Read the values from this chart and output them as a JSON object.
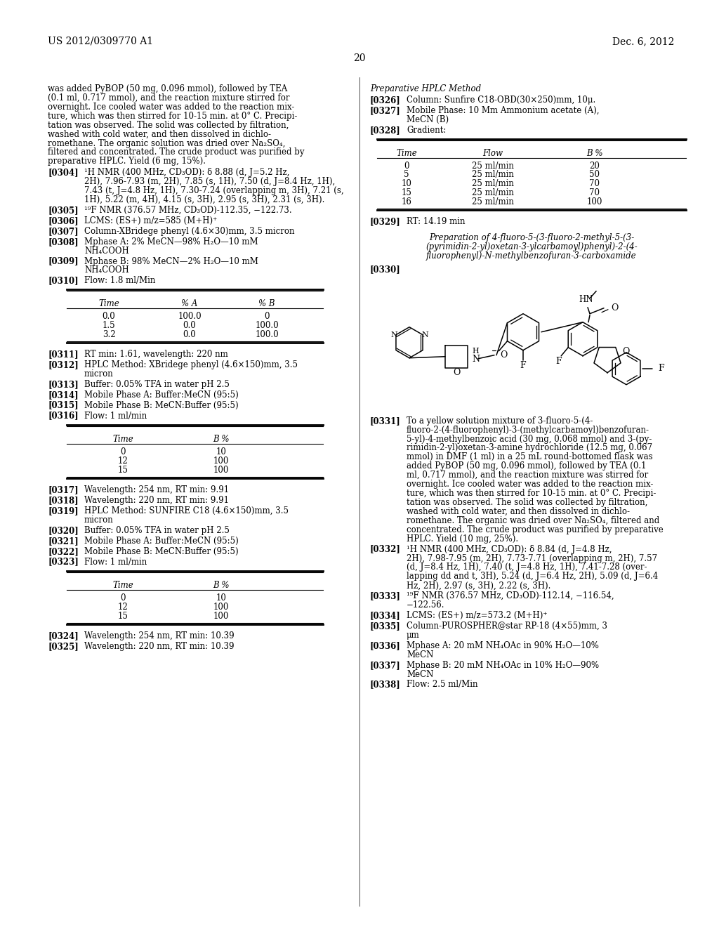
{
  "background_color": "#ffffff",
  "header_left": "US 2012/0309770 A1",
  "header_right": "Dec. 6, 2012",
  "page_number": "20",
  "left_column": {
    "intro_text": "was added PyBOP (50 mg, 0.096 mmol), followed by TEA\n(0.1 ml, 0.717 mmol), and the reaction mixture stirred for\novernight. Ice cooled water was added to the reaction mix-\nture, which was then stirred for 10-15 min. at 0° C. Precipi-\ntation was observed. The solid was collected by filtration,\nwashed with cold water, and then dissolved in dichlo-\nromethane. The organic solution was dried over Na₂SO₄,\nfiltered and concentrated. The crude product was purified by\npreparative HPLC. Yield (6 mg, 15%).",
    "entries": [
      {
        "tag": "[0304]",
        "text": "¹H NMR (400 MHz, CD₃OD): δ 8.88 (d, J=5.2 Hz,\n2H), 7.96-7.93 (m, 2H), 7.85 (s, 1H), 7.50 (d, J=8.4 Hz, 1H),\n7.43 (t, J=4.8 Hz, 1H), 7.30-7.24 (overlapping m, 3H), 7.21 (s,\n1H), 5.22 (m, 4H), 4.15 (s, 3H), 2.95 (s, 3H), 2.31 (s, 3H)."
      },
      {
        "tag": "[0305]",
        "text": "¹⁹F NMR (376.57 MHz, CD₃OD)-112.35, −122.73."
      },
      {
        "tag": "[0306]",
        "text": "LCMS: (ES+) m/z=585 (M+H)⁺"
      },
      {
        "tag": "[0307]",
        "text": "Column-XBridege phenyl (4.6×30)mm, 3.5 micron"
      },
      {
        "tag": "[0308]",
        "text": "Mphase A: 2% MeCN—98% H₂O—10 mM\nNH₄COOH"
      },
      {
        "tag": "[0309]",
        "text": "Mphase B: 98% MeCN—2% H₂O—10 mM\nNH₄COOH"
      },
      {
        "tag": "[0310]",
        "text": "Flow: 1.8 ml/Min"
      }
    ],
    "table1": {
      "headers": [
        "Time",
        "% A",
        "% B"
      ],
      "rows": [
        [
          "0.0",
          "100.0",
          "0"
        ],
        [
          "1.5",
          "0.0",
          "100.0"
        ],
        [
          "3.2",
          "0.0",
          "100.0"
        ]
      ]
    },
    "entries2": [
      {
        "tag": "[0311]",
        "text": "RT min: 1.61, wavelength: 220 nm"
      },
      {
        "tag": "[0312]",
        "text": "HPLC Method: XBridege phenyl (4.6×150)mm, 3.5\nmicron"
      },
      {
        "tag": "[0313]",
        "text": "Buffer: 0.05% TFA in water pH 2.5"
      },
      {
        "tag": "[0314]",
        "text": "Mobile Phase A: Buffer:MeCN (95:5)"
      },
      {
        "tag": "[0315]",
        "text": "Mobile Phase B: MeCN:Buffer (95:5)"
      },
      {
        "tag": "[0316]",
        "text": "Flow: 1 ml/min"
      }
    ],
    "table2": {
      "headers": [
        "Time",
        "B %"
      ],
      "rows": [
        [
          "0",
          "10"
        ],
        [
          "12",
          "100"
        ],
        [
          "15",
          "100"
        ]
      ]
    },
    "entries3": [
      {
        "tag": "[0317]",
        "text": "Wavelength: 254 nm, RT min: 9.91"
      },
      {
        "tag": "[0318]",
        "text": "Wavelength: 220 nm, RT min: 9.91"
      },
      {
        "tag": "[0319]",
        "text": "HPLC Method: SUNFIRE C18 (4.6×150)mm, 3.5\nmicron"
      },
      {
        "tag": "[0320]",
        "text": "Buffer: 0.05% TFA in water pH 2.5"
      },
      {
        "tag": "[0321]",
        "text": "Mobile Phase A: Buffer:MeCN (95:5)"
      },
      {
        "tag": "[0322]",
        "text": "Mobile Phase B: MeCN:Buffer (95:5)"
      },
      {
        "tag": "[0323]",
        "text": "Flow: 1 ml/min"
      }
    ],
    "table3": {
      "headers": [
        "Time",
        "B %"
      ],
      "rows": [
        [
          "0",
          "10"
        ],
        [
          "12",
          "100"
        ],
        [
          "15",
          "100"
        ]
      ]
    },
    "entries4": [
      {
        "tag": "[0324]",
        "text": "Wavelength: 254 nm, RT min: 10.39"
      },
      {
        "tag": "[0325]",
        "text": "Wavelength: 220 nm, RT min: 10.39"
      }
    ]
  },
  "right_column": {
    "section_title": "Preparative HPLC Method",
    "entries": [
      {
        "tag": "[0326]",
        "text": "Column: Sunfire C18-OBD(30×250)mm, 10μ."
      },
      {
        "tag": "[0327]",
        "text": "Mobile Phase: 10 Mm Ammonium acetate (A),\nMeCN (B)"
      },
      {
        "tag": "[0328]",
        "text": "Gradient:"
      }
    ],
    "table_prep": {
      "headers": [
        "Time",
        "Flow",
        "B %"
      ],
      "rows": [
        [
          "0",
          "25 ml/min",
          "20"
        ],
        [
          "5",
          "25 ml/min",
          "50"
        ],
        [
          "10",
          "25 ml/min",
          "70"
        ],
        [
          "15",
          "25 ml/min",
          "70"
        ],
        [
          "16",
          "25 ml/min",
          "100"
        ]
      ]
    },
    "entries2": [
      {
        "tag": "[0329]",
        "text": "RT: 14.19 min"
      }
    ],
    "compound_title_lines": [
      "Preparation of 4-fluoro-5-(3-fluoro-2-methyl-5-(3-",
      "(pyrimidin-2-yl)oxetan-3-ylcarbamoyl)phenyl)-2-(4-",
      "fluorophenyl)-N-methylbenzofuran-3-carboxamide"
    ],
    "tag0330": "[0330]",
    "entries3": [
      {
        "tag": "[0331]",
        "text": "To a yellow solution mixture of 3-fluoro-5-(4-\nfluoro-2-(4-fluorophenyl)-3-(methylcarbamoyl)benzofuran-\n5-yl)-4-methylbenzoic acid (30 mg, 0.068 mmol) and 3-(py-\nrimidin-2-yl)oxetan-3-amine hydrochloride (12.5 mg, 0.067\nmmol) in DMF (1 ml) in a 25 mL round-bottomed flask was\nadded PyBOP (50 mg, 0.096 mmol), followed by TEA (0.1\nml, 0.717 mmol), and the reaction mixture was stirred for\novernight. Ice cooled water was added to the reaction mix-\nture, which was then stirred for 10-15 min. at 0° C. Precipi-\ntation was observed. The solid was collected by filtration,\nwashed with cold water, and then dissolved in dichlo-\nromethane. The organic was dried over Na₂SO₄, filtered and\nconcentrated. The crude product was purified by preparative\nHPLC. Yield (10 mg, 25%)."
      },
      {
        "tag": "[0332]",
        "text": "¹H NMR (400 MHz, CD₃OD): δ 8.84 (d, J=4.8 Hz,\n2H), 7.98-7.95 (m, 2H), 7.73-7.71 (overlapping m, 2H), 7.57\n(d, J=8.4 Hz, 1H), 7.40 (t, J=4.8 Hz, 1H), 7.41-7.28 (over-\nlapping dd and t, 3H), 5.24 (d, J=6.4 Hz, 2H), 5.09 (d, J=6.4\nHz, 2H), 2.97 (s, 3H), 2.22 (s, 3H)."
      },
      {
        "tag": "[0333]",
        "text": "¹⁹F NMR (376.57 MHz, CD₃OD)-112.14, −116.54,\n−122.56."
      },
      {
        "tag": "[0334]",
        "text": "LCMS: (ES+) m/z=573.2 (M+H)⁺"
      },
      {
        "tag": "[0335]",
        "text": "Column-PUROSPHER@star RP-18 (4×55)mm, 3\nμm"
      },
      {
        "tag": "[0336]",
        "text": "Mphase A: 20 mM NH₄OAc in 90% H₂O—10%\nMeCN"
      },
      {
        "tag": "[0337]",
        "text": "Mphase B: 20 mM NH₄OAc in 10% H₂O—90%\nMeCN"
      },
      {
        "tag": "[0338]",
        "text": "Flow: 2.5 ml/Min"
      }
    ]
  }
}
